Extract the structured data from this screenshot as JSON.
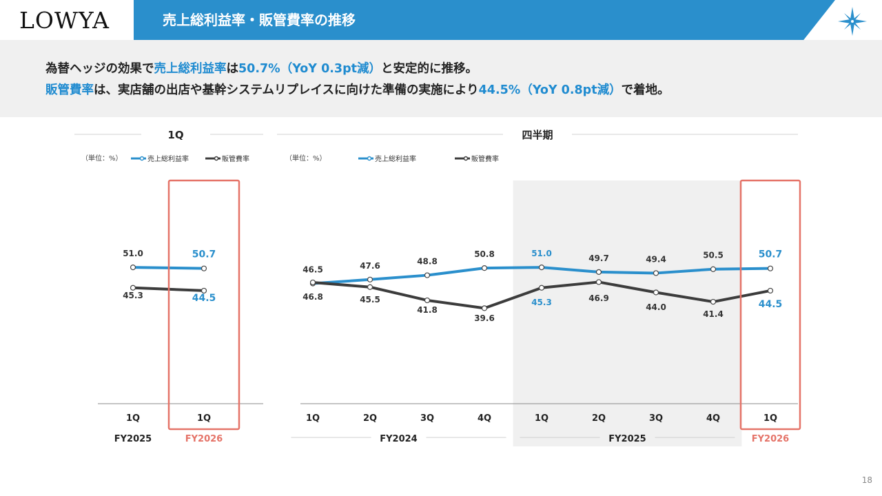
{
  "header": {
    "logo": "LOWYA",
    "title": "売上総利益率・販管費率の推移"
  },
  "lead": {
    "line1": [
      {
        "text": "為替ヘッジの効果で",
        "hl": false
      },
      {
        "text": "売上総利益率",
        "hl": true
      },
      {
        "text": "は",
        "hl": false
      },
      {
        "text": "50.7%（YoY 0.3pt減）",
        "hl": true
      },
      {
        "text": "と安定的に推移。",
        "hl": false
      }
    ],
    "line2": [
      {
        "text": "販管費率",
        "hl": true
      },
      {
        "text": "は、実店舗の出店や基幹システムリプレイスに向けた準備の実施により",
        "hl": false
      },
      {
        "text": "44.5%（YoY 0.8pt減）",
        "hl": true
      },
      {
        "text": "で着地。",
        "hl": false
      }
    ]
  },
  "page_number": "18",
  "colors": {
    "accent": "#2a8fcc",
    "gross": "#2a8fcc",
    "sga": "#3c3c3c",
    "highlight_box": "#e57368",
    "shade": "#f0f0f0"
  },
  "chart_data": [
    {
      "type": "line",
      "title": "1Q",
      "unit_label": "（単位：%）",
      "categories": [
        "1Q",
        "1Q"
      ],
      "fiscal_years": [
        {
          "label": "FY2025",
          "span": [
            0,
            0
          ],
          "highlight": false
        },
        {
          "label": "FY2026",
          "span": [
            1,
            1
          ],
          "highlight": true
        }
      ],
      "highlight_index": 1,
      "series": [
        {
          "name": "売上総利益率",
          "values": [
            51.0,
            50.7
          ]
        },
        {
          "name": "販管費率",
          "values": [
            45.3,
            44.5
          ]
        }
      ]
    },
    {
      "type": "line",
      "title": "四半期",
      "unit_label": "（単位：%）",
      "categories": [
        "1Q",
        "2Q",
        "3Q",
        "4Q",
        "1Q",
        "2Q",
        "3Q",
        "4Q",
        "1Q"
      ],
      "fiscal_years": [
        {
          "label": "FY2024",
          "span": [
            0,
            3
          ],
          "highlight": false
        },
        {
          "label": "FY2025",
          "span": [
            4,
            7
          ],
          "highlight": false
        },
        {
          "label": "FY2026",
          "span": [
            8,
            8
          ],
          "highlight": true
        }
      ],
      "shaded_span": [
        4,
        7
      ],
      "highlight_index": 8,
      "series": [
        {
          "name": "売上総利益率",
          "values": [
            46.5,
            47.6,
            48.8,
            50.8,
            51.0,
            49.7,
            49.4,
            50.5,
            50.7
          ]
        },
        {
          "name": "販管費率",
          "values": [
            46.8,
            45.5,
            41.8,
            39.6,
            45.3,
            46.9,
            44.0,
            41.4,
            44.5
          ]
        }
      ]
    }
  ]
}
